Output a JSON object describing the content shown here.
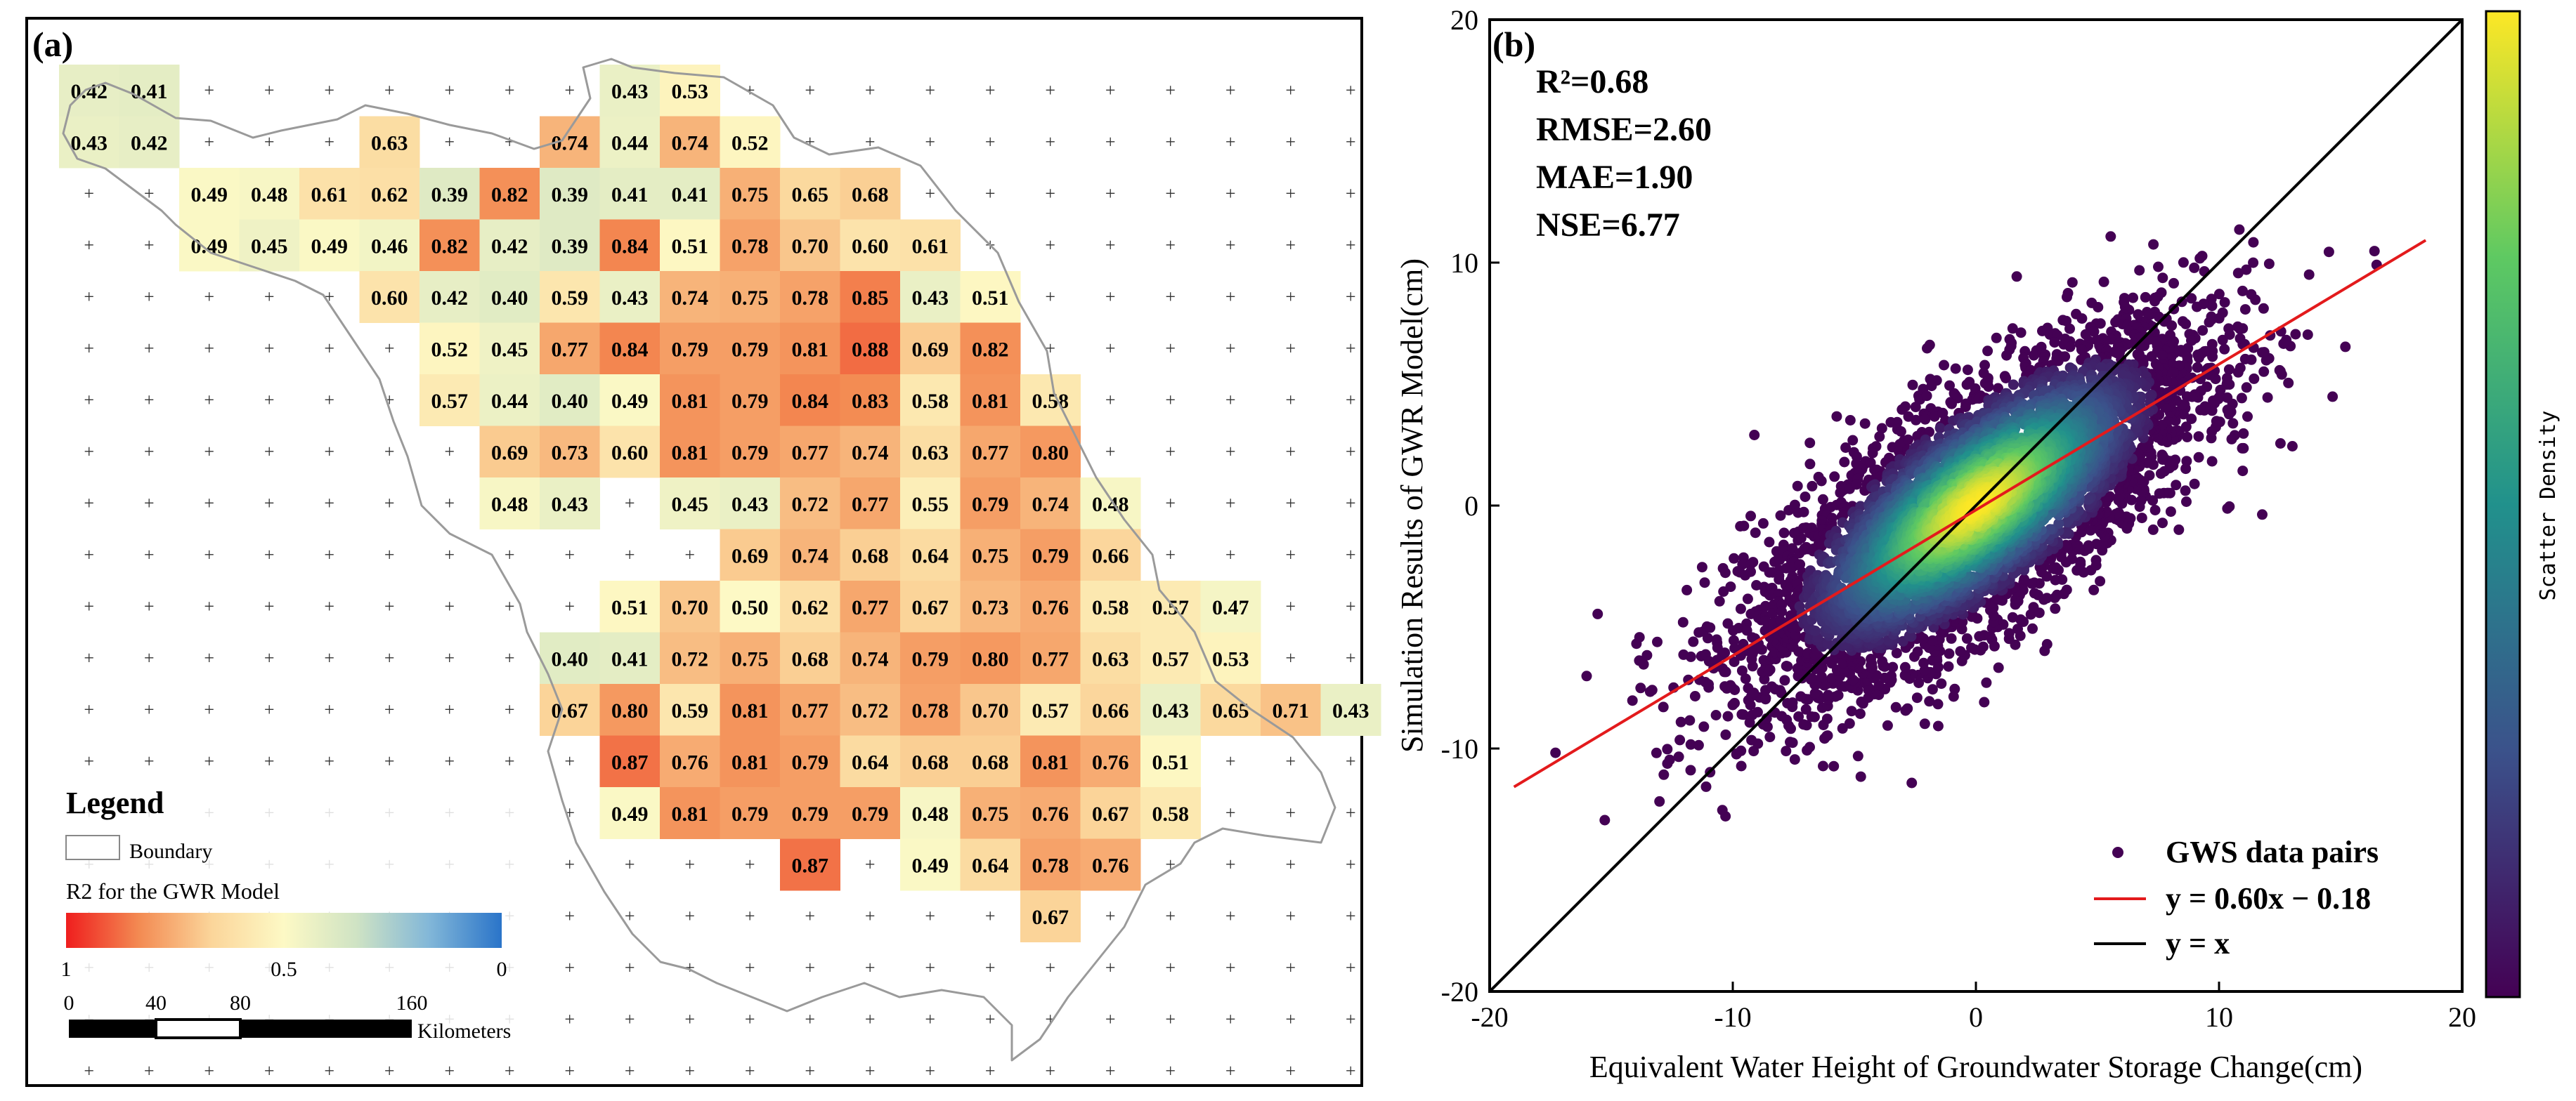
{
  "chart_data": [
    {
      "type": "heatmap",
      "panel_label": "(a)",
      "legend": {
        "title": "Legend",
        "boundary_label": "Boundary",
        "colorbar_title": "R2 for the GWR Model",
        "colorbar_ticks": [
          "1",
          "0.5",
          "0"
        ],
        "colorbar_colors": [
          "#ef1e1e",
          "#f38a52",
          "#fbd59a",
          "#fdf9c5",
          "#cfe3c4",
          "#82b7d8",
          "#2a74c9"
        ]
      },
      "scale_bar": {
        "ticks": [
          "0",
          "40",
          "80",
          "160"
        ],
        "unit": "Kilometers"
      },
      "grid_rows": 20,
      "grid_cols": 22,
      "cells": [
        {
          "row": 0,
          "col": 0,
          "value": "0.42"
        },
        {
          "row": 0,
          "col": 1,
          "value": "0.41"
        },
        {
          "row": 0,
          "col": 9,
          "value": "0.43"
        },
        {
          "row": 0,
          "col": 10,
          "value": "0.53"
        },
        {
          "row": 1,
          "col": 0,
          "value": "0.43"
        },
        {
          "row": 1,
          "col": 1,
          "value": "0.42"
        },
        {
          "row": 1,
          "col": 5,
          "value": "0.63"
        },
        {
          "row": 1,
          "col": 8,
          "value": "0.74"
        },
        {
          "row": 1,
          "col": 9,
          "value": "0.44"
        },
        {
          "row": 1,
          "col": 10,
          "value": "0.74"
        },
        {
          "row": 1,
          "col": 11,
          "value": "0.52"
        },
        {
          "row": 2,
          "col": 2,
          "value": "0.49"
        },
        {
          "row": 2,
          "col": 3,
          "value": "0.48"
        },
        {
          "row": 2,
          "col": 4,
          "value": "0.61"
        },
        {
          "row": 2,
          "col": 5,
          "value": "0.62"
        },
        {
          "row": 2,
          "col": 6,
          "value": "0.39"
        },
        {
          "row": 2,
          "col": 7,
          "value": "0.82"
        },
        {
          "row": 2,
          "col": 8,
          "value": "0.39"
        },
        {
          "row": 2,
          "col": 9,
          "value": "0.41"
        },
        {
          "row": 2,
          "col": 10,
          "value": "0.41"
        },
        {
          "row": 2,
          "col": 11,
          "value": "0.75"
        },
        {
          "row": 2,
          "col": 12,
          "value": "0.65"
        },
        {
          "row": 2,
          "col": 13,
          "value": "0.68"
        },
        {
          "row": 3,
          "col": 2,
          "value": "0.49"
        },
        {
          "row": 3,
          "col": 3,
          "value": "0.45"
        },
        {
          "row": 3,
          "col": 4,
          "value": "0.49"
        },
        {
          "row": 3,
          "col": 5,
          "value": "0.46"
        },
        {
          "row": 3,
          "col": 6,
          "value": "0.82"
        },
        {
          "row": 3,
          "col": 7,
          "value": "0.42"
        },
        {
          "row": 3,
          "col": 8,
          "value": "0.39"
        },
        {
          "row": 3,
          "col": 9,
          "value": "0.84"
        },
        {
          "row": 3,
          "col": 10,
          "value": "0.51"
        },
        {
          "row": 3,
          "col": 11,
          "value": "0.78"
        },
        {
          "row": 3,
          "col": 12,
          "value": "0.70"
        },
        {
          "row": 3,
          "col": 13,
          "value": "0.60"
        },
        {
          "row": 3,
          "col": 14,
          "value": "0.61"
        },
        {
          "row": 4,
          "col": 5,
          "value": "0.60"
        },
        {
          "row": 4,
          "col": 6,
          "value": "0.42"
        },
        {
          "row": 4,
          "col": 7,
          "value": "0.40"
        },
        {
          "row": 4,
          "col": 8,
          "value": "0.59"
        },
        {
          "row": 4,
          "col": 9,
          "value": "0.43"
        },
        {
          "row": 4,
          "col": 10,
          "value": "0.74"
        },
        {
          "row": 4,
          "col": 11,
          "value": "0.75"
        },
        {
          "row": 4,
          "col": 12,
          "value": "0.78"
        },
        {
          "row": 4,
          "col": 13,
          "value": "0.85"
        },
        {
          "row": 4,
          "col": 14,
          "value": "0.43"
        },
        {
          "row": 4,
          "col": 15,
          "value": "0.51"
        },
        {
          "row": 5,
          "col": 6,
          "value": "0.52"
        },
        {
          "row": 5,
          "col": 7,
          "value": "0.45"
        },
        {
          "row": 5,
          "col": 8,
          "value": "0.77"
        },
        {
          "row": 5,
          "col": 9,
          "value": "0.84"
        },
        {
          "row": 5,
          "col": 10,
          "value": "0.79"
        },
        {
          "row": 5,
          "col": 11,
          "value": "0.79"
        },
        {
          "row": 5,
          "col": 12,
          "value": "0.81"
        },
        {
          "row": 5,
          "col": 13,
          "value": "0.88"
        },
        {
          "row": 5,
          "col": 14,
          "value": "0.69"
        },
        {
          "row": 5,
          "col": 15,
          "value": "0.82"
        },
        {
          "row": 6,
          "col": 6,
          "value": "0.57"
        },
        {
          "row": 6,
          "col": 7,
          "value": "0.44"
        },
        {
          "row": 6,
          "col": 8,
          "value": "0.40"
        },
        {
          "row": 6,
          "col": 9,
          "value": "0.49"
        },
        {
          "row": 6,
          "col": 10,
          "value": "0.81"
        },
        {
          "row": 6,
          "col": 11,
          "value": "0.79"
        },
        {
          "row": 6,
          "col": 12,
          "value": "0.84"
        },
        {
          "row": 6,
          "col": 13,
          "value": "0.83"
        },
        {
          "row": 6,
          "col": 14,
          "value": "0.58"
        },
        {
          "row": 6,
          "col": 15,
          "value": "0.81"
        },
        {
          "row": 6,
          "col": 16,
          "value": "0.58"
        },
        {
          "row": 7,
          "col": 7,
          "value": "0.69"
        },
        {
          "row": 7,
          "col": 8,
          "value": "0.73"
        },
        {
          "row": 7,
          "col": 9,
          "value": "0.60"
        },
        {
          "row": 7,
          "col": 10,
          "value": "0.81"
        },
        {
          "row": 7,
          "col": 11,
          "value": "0.79"
        },
        {
          "row": 7,
          "col": 12,
          "value": "0.77"
        },
        {
          "row": 7,
          "col": 13,
          "value": "0.74"
        },
        {
          "row": 7,
          "col": 14,
          "value": "0.63"
        },
        {
          "row": 7,
          "col": 15,
          "value": "0.77"
        },
        {
          "row": 7,
          "col": 16,
          "value": "0.80"
        },
        {
          "row": 8,
          "col": 7,
          "value": "0.48"
        },
        {
          "row": 8,
          "col": 8,
          "value": "0.43"
        },
        {
          "row": 8,
          "col": 10,
          "value": "0.45"
        },
        {
          "row": 8,
          "col": 11,
          "value": "0.43"
        },
        {
          "row": 8,
          "col": 12,
          "value": "0.72"
        },
        {
          "row": 8,
          "col": 13,
          "value": "0.77"
        },
        {
          "row": 8,
          "col": 14,
          "value": "0.55"
        },
        {
          "row": 8,
          "col": 15,
          "value": "0.79"
        },
        {
          "row": 8,
          "col": 16,
          "value": "0.74"
        },
        {
          "row": 8,
          "col": 17,
          "value": "0.48"
        },
        {
          "row": 9,
          "col": 11,
          "value": "0.69"
        },
        {
          "row": 9,
          "col": 12,
          "value": "0.74"
        },
        {
          "row": 9,
          "col": 13,
          "value": "0.68"
        },
        {
          "row": 9,
          "col": 14,
          "value": "0.64"
        },
        {
          "row": 9,
          "col": 15,
          "value": "0.75"
        },
        {
          "row": 9,
          "col": 16,
          "value": "0.79"
        },
        {
          "row": 9,
          "col": 17,
          "value": "0.66"
        },
        {
          "row": 10,
          "col": 9,
          "value": "0.51"
        },
        {
          "row": 10,
          "col": 10,
          "value": "0.70"
        },
        {
          "row": 10,
          "col": 11,
          "value": "0.50"
        },
        {
          "row": 10,
          "col": 12,
          "value": "0.62"
        },
        {
          "row": 10,
          "col": 13,
          "value": "0.77"
        },
        {
          "row": 10,
          "col": 14,
          "value": "0.67"
        },
        {
          "row": 10,
          "col": 15,
          "value": "0.73"
        },
        {
          "row": 10,
          "col": 16,
          "value": "0.76"
        },
        {
          "row": 10,
          "col": 17,
          "value": "0.58"
        },
        {
          "row": 10,
          "col": 18,
          "value": "0.57"
        },
        {
          "row": 10,
          "col": 19,
          "value": "0.47"
        },
        {
          "row": 11,
          "col": 8,
          "value": "0.40"
        },
        {
          "row": 11,
          "col": 9,
          "value": "0.41"
        },
        {
          "row": 11,
          "col": 10,
          "value": "0.72"
        },
        {
          "row": 11,
          "col": 11,
          "value": "0.75"
        },
        {
          "row": 11,
          "col": 12,
          "value": "0.68"
        },
        {
          "row": 11,
          "col": 13,
          "value": "0.74"
        },
        {
          "row": 11,
          "col": 14,
          "value": "0.79"
        },
        {
          "row": 11,
          "col": 15,
          "value": "0.80"
        },
        {
          "row": 11,
          "col": 16,
          "value": "0.77"
        },
        {
          "row": 11,
          "col": 17,
          "value": "0.63"
        },
        {
          "row": 11,
          "col": 18,
          "value": "0.57"
        },
        {
          "row": 11,
          "col": 19,
          "value": "0.53"
        },
        {
          "row": 12,
          "col": 8,
          "value": "0.67"
        },
        {
          "row": 12,
          "col": 9,
          "value": "0.80"
        },
        {
          "row": 12,
          "col": 10,
          "value": "0.59"
        },
        {
          "row": 12,
          "col": 11,
          "value": "0.81"
        },
        {
          "row": 12,
          "col": 12,
          "value": "0.77"
        },
        {
          "row": 12,
          "col": 13,
          "value": "0.72"
        },
        {
          "row": 12,
          "col": 14,
          "value": "0.78"
        },
        {
          "row": 12,
          "col": 15,
          "value": "0.70"
        },
        {
          "row": 12,
          "col": 16,
          "value": "0.57"
        },
        {
          "row": 12,
          "col": 17,
          "value": "0.66"
        },
        {
          "row": 12,
          "col": 18,
          "value": "0.43"
        },
        {
          "row": 12,
          "col": 19,
          "value": "0.65"
        },
        {
          "row": 12,
          "col": 20,
          "value": "0.71"
        },
        {
          "row": 12,
          "col": 21,
          "value": "0.43"
        },
        {
          "row": 13,
          "col": 9,
          "value": "0.87"
        },
        {
          "row": 13,
          "col": 10,
          "value": "0.76"
        },
        {
          "row": 13,
          "col": 11,
          "value": "0.81"
        },
        {
          "row": 13,
          "col": 12,
          "value": "0.79"
        },
        {
          "row": 13,
          "col": 13,
          "value": "0.64"
        },
        {
          "row": 13,
          "col": 14,
          "value": "0.68"
        },
        {
          "row": 13,
          "col": 15,
          "value": "0.68"
        },
        {
          "row": 13,
          "col": 16,
          "value": "0.81"
        },
        {
          "row": 13,
          "col": 17,
          "value": "0.76"
        },
        {
          "row": 13,
          "col": 18,
          "value": "0.51"
        },
        {
          "row": 14,
          "col": 9,
          "value": "0.49"
        },
        {
          "row": 14,
          "col": 10,
          "value": "0.81"
        },
        {
          "row": 14,
          "col": 11,
          "value": "0.79"
        },
        {
          "row": 14,
          "col": 12,
          "value": "0.79"
        },
        {
          "row": 14,
          "col": 13,
          "value": "0.79"
        },
        {
          "row": 14,
          "col": 14,
          "value": "0.48"
        },
        {
          "row": 14,
          "col": 15,
          "value": "0.75"
        },
        {
          "row": 14,
          "col": 16,
          "value": "0.76"
        },
        {
          "row": 14,
          "col": 17,
          "value": "0.67"
        },
        {
          "row": 14,
          "col": 18,
          "value": "0.58"
        },
        {
          "row": 15,
          "col": 12,
          "value": "0.87"
        },
        {
          "row": 15,
          "col": 14,
          "value": "0.49"
        },
        {
          "row": 15,
          "col": 15,
          "value": "0.64"
        },
        {
          "row": 15,
          "col": 16,
          "value": "0.78"
        },
        {
          "row": 15,
          "col": 17,
          "value": "0.76"
        },
        {
          "row": 16,
          "col": 16,
          "value": "0.67"
        }
      ]
    },
    {
      "type": "scatter",
      "panel_label": "(b)",
      "xlabel": "Equivalent Water Height of Groundwater Storage Change(cm)",
      "ylabel": "Simulation Results of GWR Model(cm)",
      "xlim": [
        -20,
        20
      ],
      "ylim": [
        -20,
        20
      ],
      "xticks": [
        -20,
        -10,
        0,
        10,
        20
      ],
      "yticks": [
        -20,
        -10,
        0,
        10,
        20
      ],
      "stats": [
        "R²=0.68",
        "RMSE=2.60",
        "MAE=1.90",
        "NSE=6.77"
      ],
      "colorbar_label": "Scatter Density",
      "colorbar_colors": [
        "#440154",
        "#3b528b",
        "#21918c",
        "#5ec962",
        "#fde725"
      ],
      "point_color": "#440154",
      "fit": {
        "slope": 0.6,
        "intercept": -0.18,
        "color": "#e31a1c"
      },
      "identity_color": "#000000",
      "legend": [
        {
          "label": "GWS data pairs",
          "kind": "marker"
        },
        {
          "label": "y = 0.60x − 0.18",
          "kind": "line-red"
        },
        {
          "label": "y = x",
          "kind": "line-black"
        }
      ]
    }
  ]
}
